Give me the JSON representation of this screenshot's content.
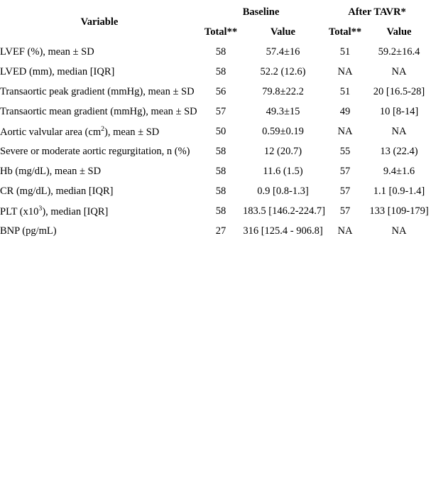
{
  "colors": {
    "background": "#ffffff",
    "text": "#000000"
  },
  "table": {
    "header": {
      "variable_label": "Variable",
      "group1_label": "Baseline",
      "group2_label": "After TAVR*",
      "subheaders": {
        "total": "Total**",
        "value": "Value"
      }
    },
    "rows": [
      {
        "variable": [
          {
            "t": "LVEF (%), mean ± SD"
          }
        ],
        "baseline_total": "58",
        "baseline_value": "57.4±16",
        "after_total": "51",
        "after_value": "59.2±16.4"
      },
      {
        "variable": [
          {
            "t": "LVED (mm), median [IQR]"
          }
        ],
        "baseline_total": "58",
        "baseline_value": "52.2 (12.6)",
        "after_total": "NA",
        "after_value": "NA"
      },
      {
        "variable": [
          {
            "t": "Transaortic peak gradient (mmHg), mean ± SD"
          }
        ],
        "baseline_total": "56",
        "baseline_value": "79.8±22.2",
        "after_total": "51",
        "after_value": "20 [16.5-28]"
      },
      {
        "variable": [
          {
            "t": "Transaortic mean gradient (mmHg), mean ± SD"
          }
        ],
        "baseline_total": "57",
        "baseline_value": "49.3±15",
        "after_total": "49",
        "after_value": "10 [8-14]"
      },
      {
        "variable": [
          {
            "t": "Aortic valvular area (cm"
          },
          {
            "t": "2",
            "sup": true
          },
          {
            "t": "), mean ± SD"
          }
        ],
        "baseline_total": "50",
        "baseline_value": "0.59±0.19",
        "after_total": "NA",
        "after_value": "NA"
      },
      {
        "variable": [
          {
            "t": "Severe or moderate aortic regurgitation, n (%)"
          }
        ],
        "baseline_total": "58",
        "baseline_value": "12 (20.7)",
        "after_total": "55",
        "after_value": "13 (22.4)"
      },
      {
        "variable": [
          {
            "t": "Hb (mg/dL), mean ± SD"
          }
        ],
        "baseline_total": "58",
        "baseline_value": "11.6 (1.5)",
        "after_total": "57",
        "after_value": "9.4±1.6"
      },
      {
        "variable": [
          {
            "t": "CR (mg/dL), median [IQR]"
          }
        ],
        "baseline_total": "58",
        "baseline_value": "0.9 [0.8-1.3]",
        "after_total": "57",
        "after_value": "1.1 [0.9-1.4]"
      },
      {
        "variable": [
          {
            "t": "PLT (x10"
          },
          {
            "t": "3",
            "sup": true
          },
          {
            "t": "), median [IQR]"
          }
        ],
        "baseline_total": "58",
        "baseline_value": "183.5 [146.2-224.7]",
        "after_total": "57",
        "after_value": "133 [109-179]"
      },
      {
        "variable": [
          {
            "t": "BNP (pg/mL)"
          }
        ],
        "baseline_total": "27",
        "baseline_value": "316 [125.4 - 906.8]",
        "after_total": "NA",
        "after_value": "NA"
      }
    ]
  }
}
